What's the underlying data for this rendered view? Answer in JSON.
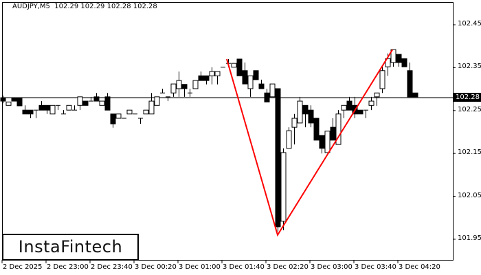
{
  "header": {
    "title": "AUDJPY,M5  102.29 102.29 102.28 102.28"
  },
  "logo": {
    "text": "InstaFintech"
  },
  "colors": {
    "pattern_line": "#ff0000",
    "bull_body": "#ffffff",
    "bear_body": "#000000",
    "grid": "#000000"
  },
  "chart_data": {
    "type": "candlestick",
    "symbol": "AUDJPY",
    "timeframe": "M5",
    "ylim": [
      101.93,
      102.51
    ],
    "y_ticks": [
      "102.45",
      "102.35",
      "102.25",
      "102.15",
      "102.05",
      "101.95"
    ],
    "current_price": "102.28",
    "x_ticks": [
      {
        "index": 0,
        "label": "2 Dec 2025"
      },
      {
        "index": 8,
        "label": "2 Dec 23:00"
      },
      {
        "index": 16,
        "label": "2 Dec 23:40"
      },
      {
        "index": 24,
        "label": "3 Dec 00:20"
      },
      {
        "index": 32,
        "label": "3 Dec 01:00"
      },
      {
        "index": 40,
        "label": "3 Dec 01:40"
      },
      {
        "index": 48,
        "label": "3 Dec 02:20"
      },
      {
        "index": 56,
        "label": "3 Dec 03:00"
      },
      {
        "index": 64,
        "label": "3 Dec 03:40"
      },
      {
        "index": 72,
        "label": "3 Dec 04:20"
      }
    ],
    "candles_ohlc": [
      [
        102.28,
        102.285,
        102.267,
        102.272
      ],
      [
        102.262,
        102.27,
        102.262,
        102.27
      ],
      [
        102.28,
        102.28,
        102.272,
        102.272
      ],
      [
        102.28,
        102.28,
        102.261,
        102.261
      ],
      [
        102.251,
        102.262,
        102.242,
        102.242
      ],
      [
        102.251,
        102.251,
        102.232,
        102.242
      ],
      [
        102.251,
        102.251,
        102.232,
        102.251
      ],
      [
        102.262,
        102.272,
        102.251,
        102.251
      ],
      [
        102.262,
        102.262,
        102.242,
        102.251
      ],
      [
        102.242,
        102.262,
        102.242,
        102.262
      ],
      [
        102.262,
        102.262,
        102.251,
        102.262
      ],
      [
        102.242,
        102.251,
        102.242,
        102.242
      ],
      [
        102.251,
        102.262,
        102.251,
        102.262
      ],
      [
        102.251,
        102.262,
        102.251,
        102.251
      ],
      [
        102.262,
        102.282,
        102.251,
        102.282
      ],
      [
        102.272,
        102.272,
        102.262,
        102.262
      ],
      [
        102.272,
        102.282,
        102.272,
        102.272
      ],
      [
        102.282,
        102.291,
        102.272,
        102.272
      ],
      [
        102.262,
        102.272,
        102.262,
        102.272
      ],
      [
        102.282,
        102.291,
        102.251,
        102.251
      ],
      [
        102.242,
        102.242,
        102.21,
        102.219
      ],
      [
        102.232,
        102.242,
        102.232,
        102.242
      ],
      [
        102.232,
        102.232,
        102.232,
        102.232
      ],
      [
        102.242,
        102.251,
        102.242,
        102.251
      ],
      [
        102.242,
        102.242,
        102.242,
        102.242
      ],
      [
        102.232,
        102.232,
        102.219,
        102.232
      ],
      [
        102.242,
        102.251,
        102.242,
        102.251
      ],
      [
        102.242,
        102.291,
        102.242,
        102.272
      ],
      [
        102.262,
        102.282,
        102.262,
        102.282
      ],
      [
        102.291,
        102.301,
        102.291,
        102.291
      ],
      [
        102.282,
        102.282,
        102.272,
        102.282
      ],
      [
        102.291,
        102.312,
        102.282,
        102.312
      ],
      [
        102.301,
        102.341,
        102.282,
        102.32
      ],
      [
        102.311,
        102.311,
        102.282,
        102.301
      ],
      [
        102.291,
        102.301,
        102.282,
        102.291
      ],
      [
        102.301,
        102.32,
        102.301,
        102.32
      ],
      [
        102.331,
        102.341,
        102.32,
        102.32
      ],
      [
        102.331,
        102.331,
        102.311,
        102.32
      ],
      [
        102.331,
        102.351,
        102.311,
        102.341
      ],
      [
        102.331,
        102.341,
        102.311,
        102.341
      ],
      [
        102.351,
        102.351,
        102.351,
        102.351
      ],
      [
        102.36,
        102.37,
        102.351,
        102.36
      ],
      [
        102.351,
        102.36,
        102.351,
        102.36
      ],
      [
        102.37,
        102.37,
        102.331,
        102.331
      ],
      [
        102.343,
        102.362,
        102.312,
        102.312
      ],
      [
        102.301,
        102.331,
        102.282,
        102.331
      ],
      [
        102.343,
        102.343,
        102.322,
        102.322
      ],
      [
        102.312,
        102.322,
        102.301,
        102.301
      ],
      [
        102.291,
        102.301,
        102.27,
        102.27
      ],
      [
        102.282,
        102.312,
        102.282,
        102.312
      ],
      [
        102.301,
        102.301,
        101.968,
        101.979
      ],
      [
        101.992,
        102.162,
        101.971,
        102.152
      ],
      [
        102.162,
        102.211,
        102.162,
        102.203
      ],
      [
        102.211,
        102.242,
        102.171,
        102.232
      ],
      [
        102.221,
        102.282,
        102.221,
        102.272
      ],
      [
        102.262,
        102.262,
        102.211,
        102.242
      ],
      [
        102.251,
        102.262,
        102.211,
        102.221
      ],
      [
        102.232,
        102.232,
        102.181,
        102.181
      ],
      [
        102.192,
        102.192,
        102.15,
        102.162
      ],
      [
        102.152,
        102.202,
        102.152,
        102.202
      ],
      [
        102.211,
        102.232,
        102.181,
        102.181
      ],
      [
        102.171,
        102.251,
        102.171,
        102.242
      ],
      [
        102.251,
        102.262,
        102.232,
        102.262
      ],
      [
        102.272,
        102.282,
        102.251,
        102.251
      ],
      [
        102.262,
        102.282,
        102.232,
        102.242
      ],
      [
        102.251,
        102.251,
        102.242,
        102.242
      ],
      [
        102.251,
        102.251,
        102.232,
        102.251
      ],
      [
        102.262,
        102.282,
        102.251,
        102.272
      ],
      [
        102.282,
        102.291,
        102.261,
        102.291
      ],
      [
        102.301,
        102.352,
        102.291,
        102.343
      ],
      [
        102.352,
        102.383,
        102.331,
        102.371
      ],
      [
        102.362,
        102.392,
        102.352,
        102.392
      ],
      [
        102.381,
        102.381,
        102.352,
        102.362
      ],
      [
        102.371,
        102.371,
        102.352,
        102.352
      ],
      [
        102.343,
        102.362,
        102.282,
        102.282
      ],
      [
        102.291,
        102.291,
        102.282,
        102.282
      ]
    ],
    "pattern_points": [
      [
        40.75,
        102.37
      ],
      [
        50,
        101.96
      ],
      [
        70.9,
        102.392
      ]
    ]
  }
}
